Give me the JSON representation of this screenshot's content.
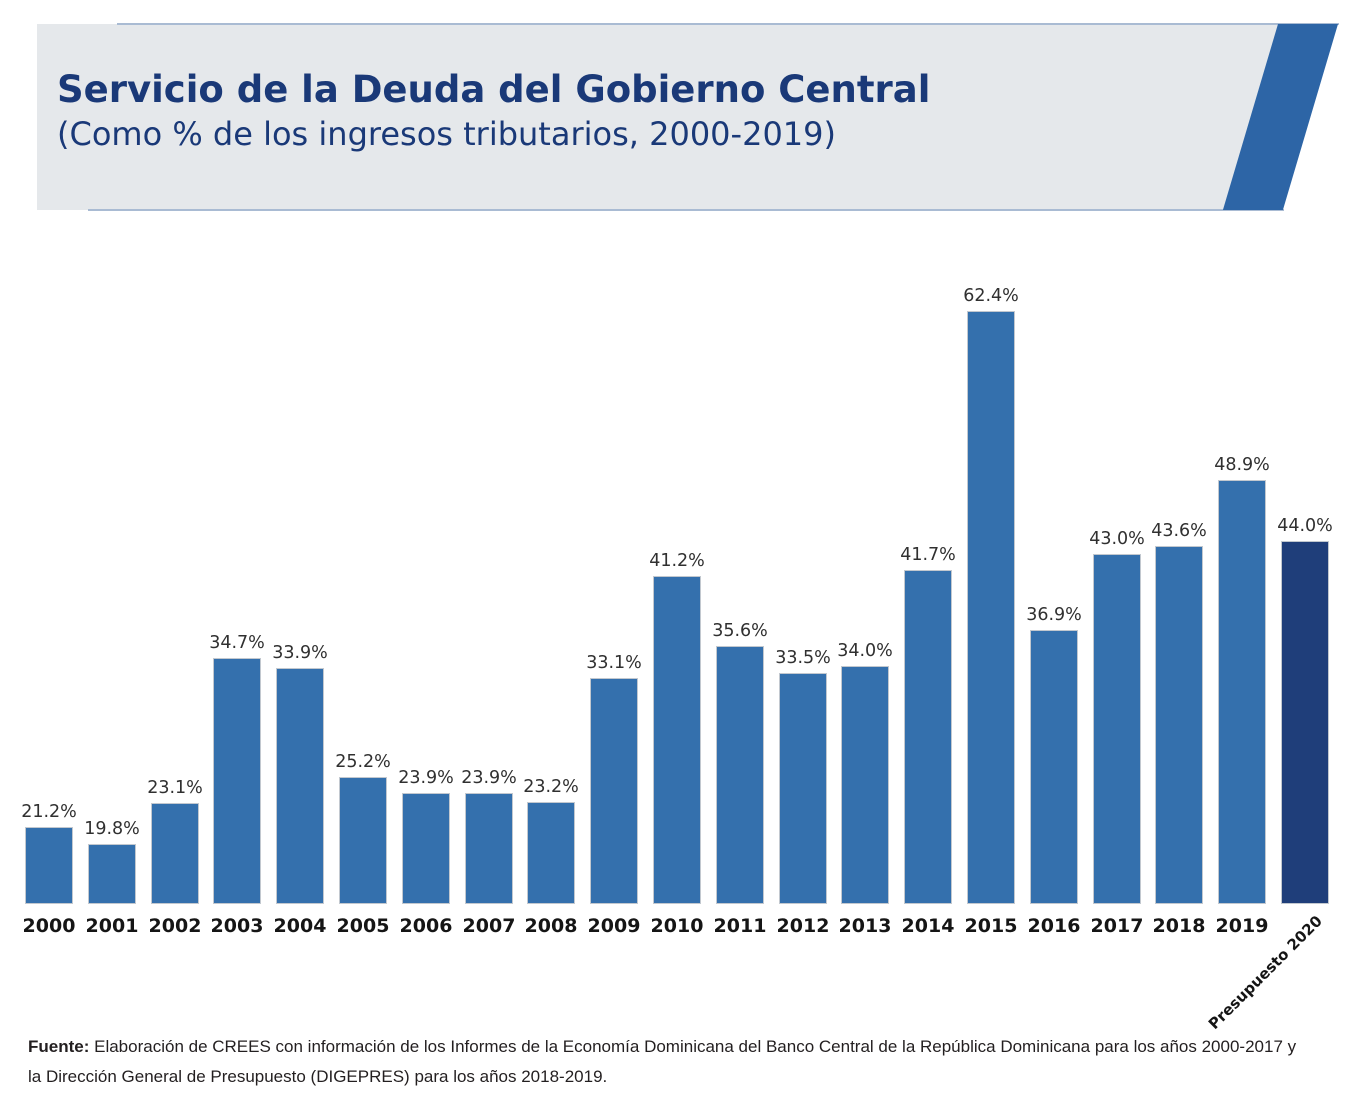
{
  "header": {
    "title": "Servicio de la Deuda del Gobierno Central",
    "subtitle": "(Como % de los ingresos tributarios, 2000-2019)"
  },
  "chart_data": {
    "type": "bar",
    "title": "Servicio de la Deuda del Gobierno Central",
    "subtitle": "(Como % de los ingresos tributarios, 2000-2019)",
    "xlabel": "",
    "ylabel": "",
    "ylim": [
      15,
      65
    ],
    "grid": false,
    "legend": "none",
    "categories": [
      "2000",
      "2001",
      "2002",
      "2003",
      "2004",
      "2005",
      "2006",
      "2007",
      "2008",
      "2009",
      "2010",
      "2011",
      "2012",
      "2013",
      "2014",
      "2015",
      "2016",
      "2017",
      "2018",
      "2019",
      "Presupuesto 2020"
    ],
    "values": [
      21.2,
      19.8,
      23.1,
      34.7,
      33.9,
      25.2,
      23.9,
      23.9,
      23.2,
      33.1,
      41.2,
      35.6,
      33.5,
      34.0,
      41.7,
      62.4,
      36.9,
      43.0,
      43.6,
      48.9,
      44.0
    ],
    "labels": [
      "21.2%",
      "19.8%",
      "23.1%",
      "34.7%",
      "33.9%",
      "25.2%",
      "23.9%",
      "23.9%",
      "23.2%",
      "33.1%",
      "41.2%",
      "35.6%",
      "33.5%",
      "34.0%",
      "41.7%",
      "62.4%",
      "36.9%",
      "43.0%",
      "43.6%",
      "48.9%",
      "44.0%"
    ],
    "bar_color": "#3470ad",
    "highlight_color": "#1f3e7a",
    "highlight_index": 20
  },
  "colors": {
    "header_background": "#e5e8eb",
    "header_accent": "#2d65a6",
    "header_rule": "#a9bbd3",
    "title_text": "#1a3978",
    "value_label": "#303030",
    "category_label": "#151515"
  },
  "footer": {
    "source_prefix": "Fuente:",
    "source_line1": " Elaboración de CREES con información de los Informes de la Economía Dominicana del Banco Central de la República Dominicana para los años 2000-2017 y",
    "source_line2": "la Dirección General de Presupuesto (DIGEPRES) para los años 2018-2019."
  }
}
